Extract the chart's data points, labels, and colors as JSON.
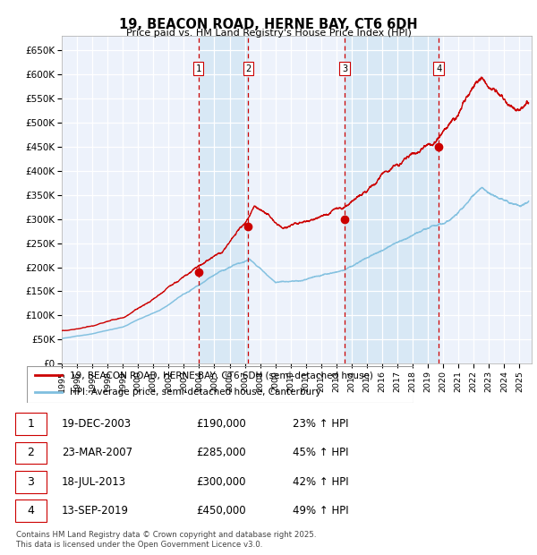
{
  "title": "19, BEACON ROAD, HERNE BAY, CT6 6DH",
  "subtitle": "Price paid vs. HM Land Registry's House Price Index (HPI)",
  "xlim_start": 1995.0,
  "xlim_end": 2025.8,
  "ylim": [
    0,
    680000
  ],
  "yticks": [
    0,
    50000,
    100000,
    150000,
    200000,
    250000,
    300000,
    350000,
    400000,
    450000,
    500000,
    550000,
    600000,
    650000
  ],
  "ytick_labels": [
    "£0",
    "£50K",
    "£100K",
    "£150K",
    "£200K",
    "£250K",
    "£300K",
    "£350K",
    "£400K",
    "£450K",
    "£500K",
    "£550K",
    "£600K",
    "£650K"
  ],
  "hpi_color": "#7fbfdf",
  "price_color": "#cc0000",
  "background_color": "#edf2fb",
  "sale_dates": [
    2003.96,
    2007.23,
    2013.54,
    2019.71
  ],
  "sale_prices": [
    190000,
    285000,
    300000,
    450000
  ],
  "sale_labels": [
    "1",
    "2",
    "3",
    "4"
  ],
  "vline_color": "#cc0000",
  "shade_color": "#d8e8f5",
  "footer_text": "Contains HM Land Registry data © Crown copyright and database right 2025.\nThis data is licensed under the Open Government Licence v3.0.",
  "legend_line1": "19, BEACON ROAD, HERNE BAY, CT6 6DH (semi-detached house)",
  "legend_line2": "HPI: Average price, semi-detached house, Canterbury",
  "table_data": [
    [
      "1",
      "19-DEC-2003",
      "£190,000",
      "23% ↑ HPI"
    ],
    [
      "2",
      "23-MAR-2007",
      "£285,000",
      "45% ↑ HPI"
    ],
    [
      "3",
      "18-JUL-2013",
      "£300,000",
      "42% ↑ HPI"
    ],
    [
      "4",
      "13-SEP-2019",
      "£450,000",
      "49% ↑ HPI"
    ]
  ]
}
